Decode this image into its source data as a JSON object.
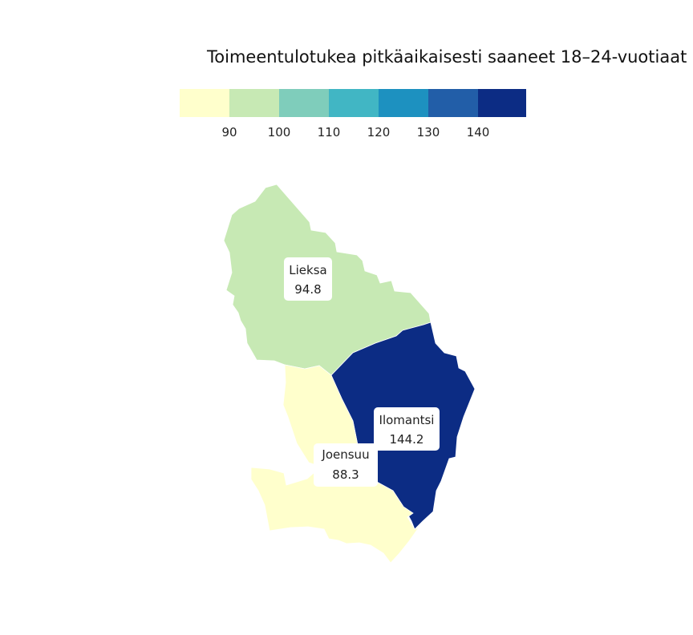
{
  "title": "Toimeentulotukea pitkäaikaisesti saaneet 18–24-vuotiaat",
  "legend": {
    "colors": [
      "#ffffcc",
      "#c7e9b4",
      "#7fcdbb",
      "#41b6c4",
      "#1d91c0",
      "#225ea8",
      "#0c2c84"
    ],
    "ticks": [
      "90",
      "100",
      "110",
      "120",
      "130",
      "140"
    ]
  },
  "regions": [
    {
      "name": "Lieksa",
      "value": "94.8",
      "color": "#c7e9b4"
    },
    {
      "name": "Ilomantsi",
      "value": "144.2",
      "color": "#0c2c84"
    },
    {
      "name": "Joensuu",
      "value": "88.3",
      "color": "#ffffcc"
    }
  ]
}
